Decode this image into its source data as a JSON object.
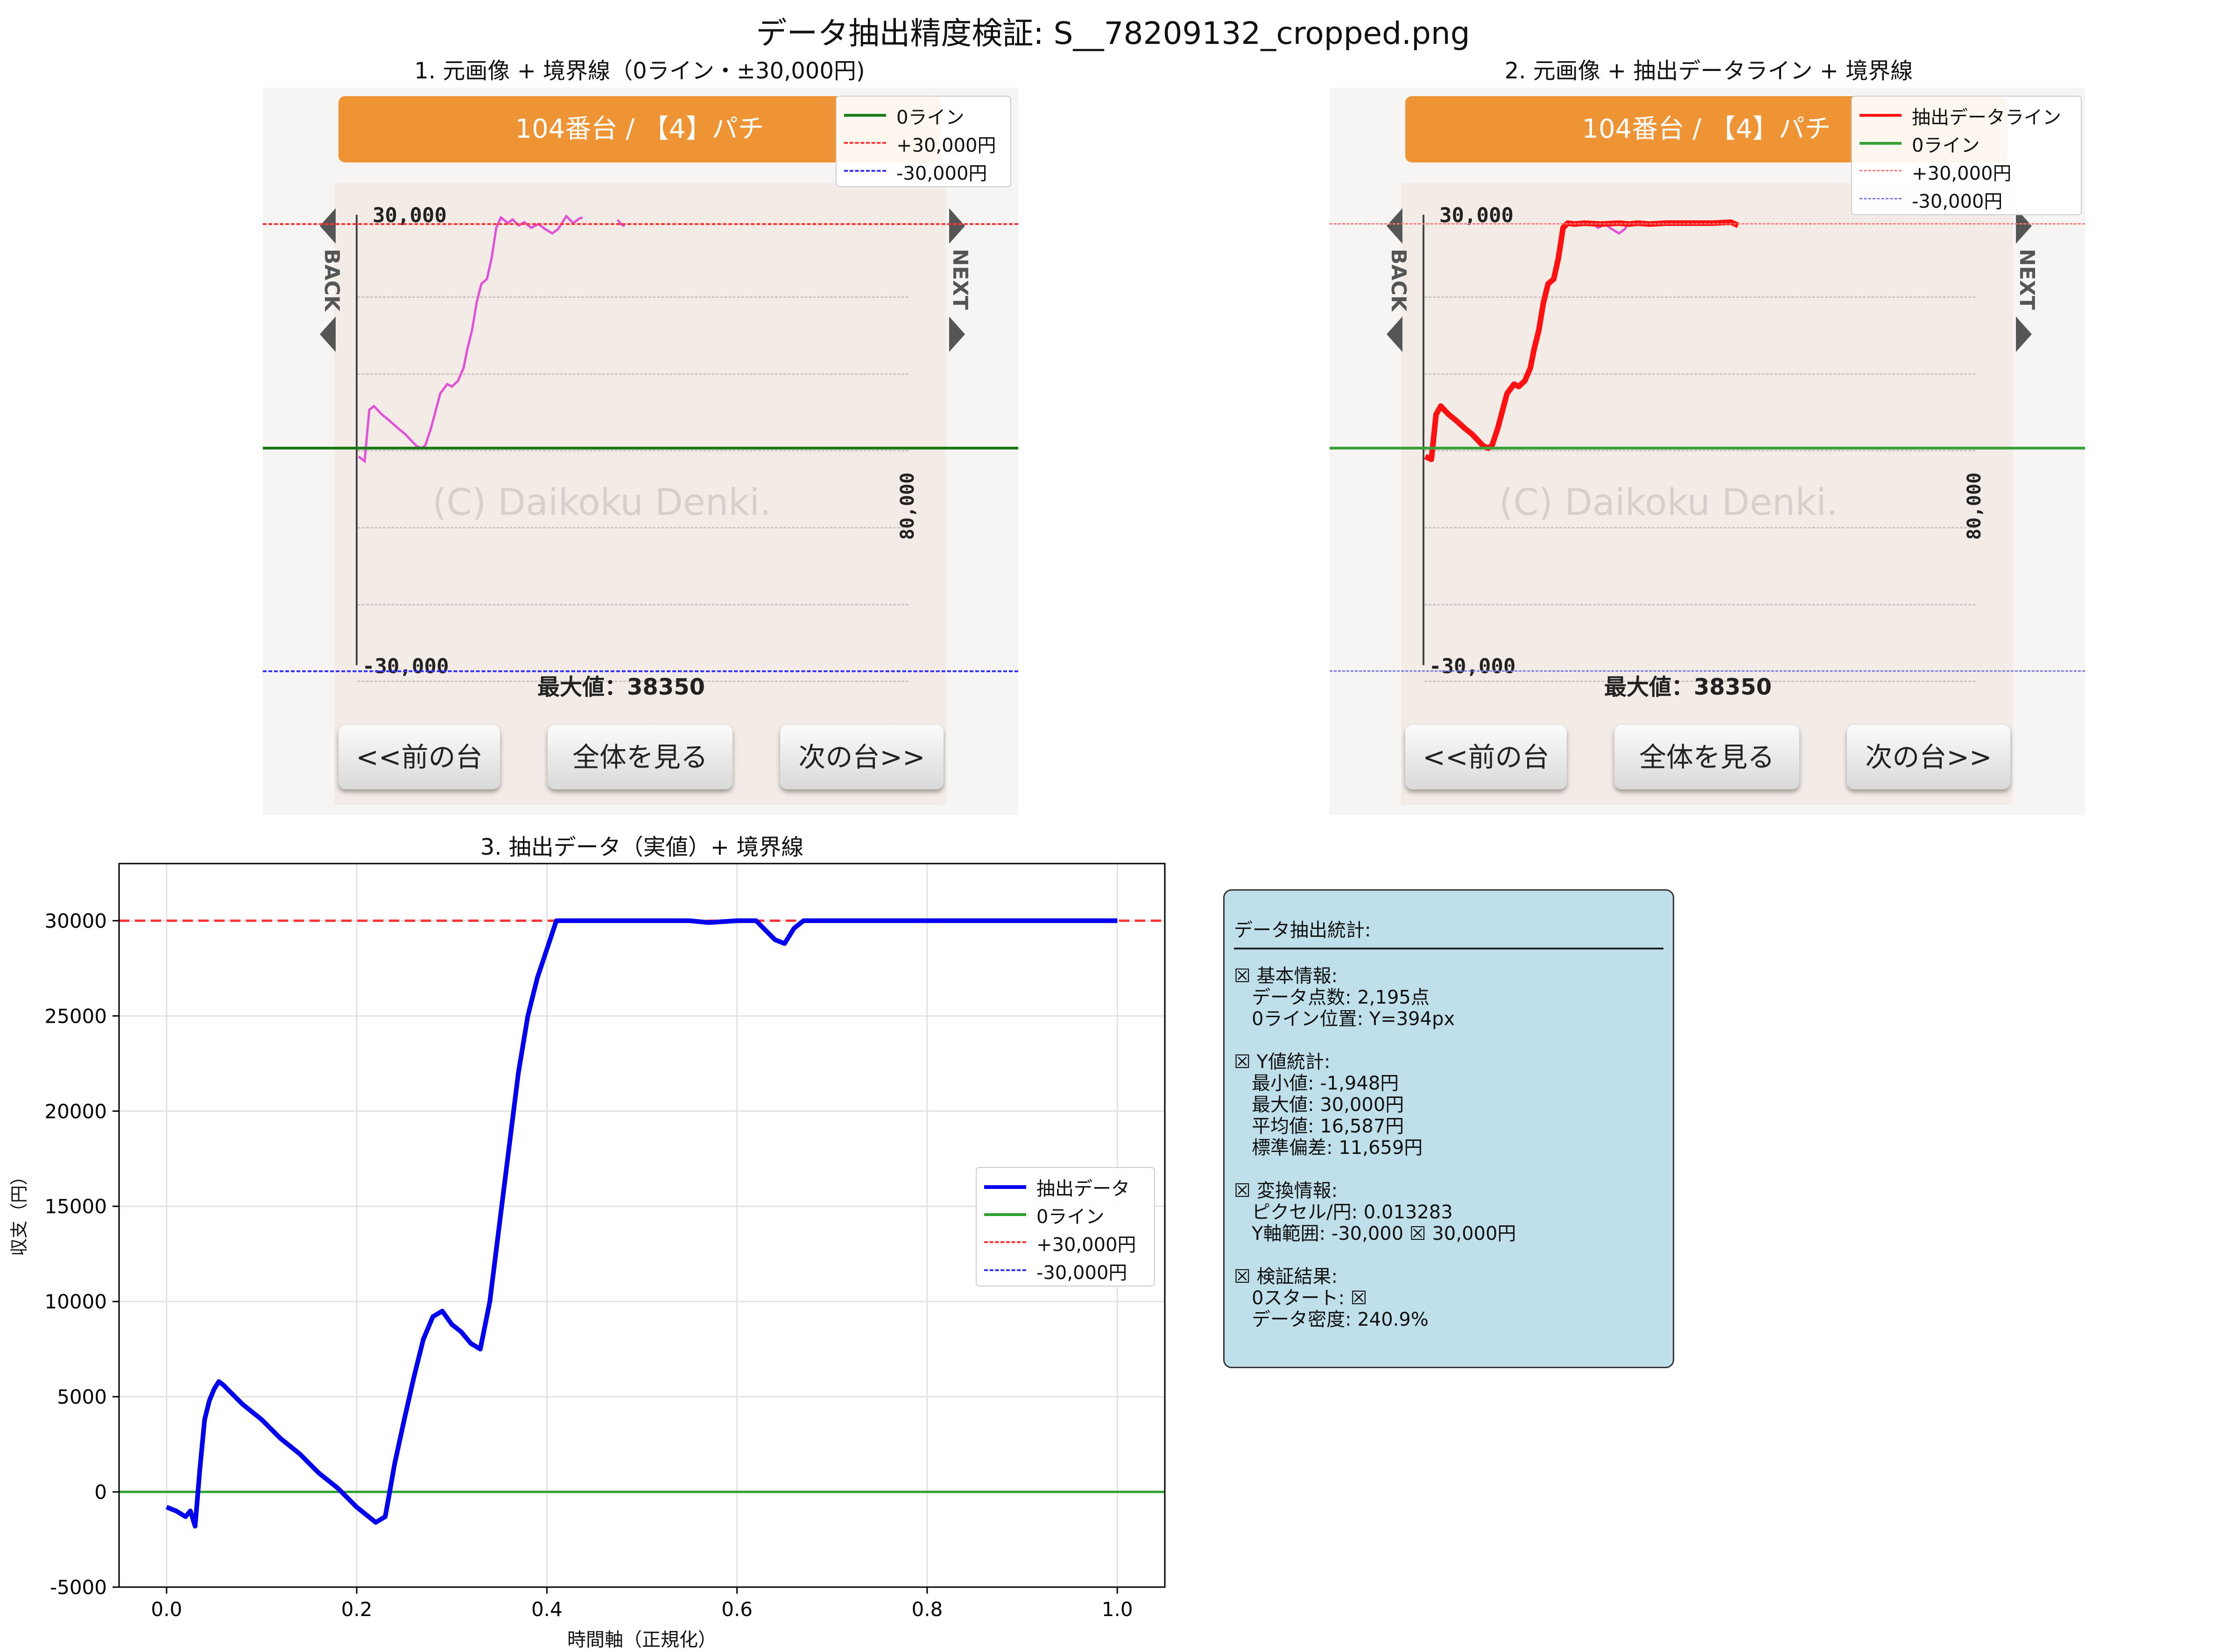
{
  "title": "データ抽出精度検証: S__78209132_cropped.png",
  "panel1": {
    "title": "1. 元画像 + 境界線（0ライン・±30,000円)",
    "legend": [
      "0ライン",
      "+30,000円",
      "-30,000円"
    ]
  },
  "panel2": {
    "title": "2. 元画像 + 抽出データライン + 境界線",
    "legend": [
      "抽出データライン",
      "0ライン",
      "+30,000円",
      "-30,000円"
    ]
  },
  "source_image": {
    "header": "104番台 / 【4】パチ",
    "y_top_label": "30,000",
    "y_bottom_label": "-30,000",
    "right_label": "80,000",
    "watermark": "(C) Daikoku Denki.",
    "max_label": "最大値：38350",
    "back_label": "BACK",
    "next_label": "NEXT",
    "buttons": [
      "<<前の台",
      "全体を見る",
      "次の台>>"
    ]
  },
  "panel3": {
    "title": "3. 抽出データ（実値）+ 境界線",
    "legend": [
      "抽出データ",
      "0ライン",
      "+30,000円",
      "-30,000円"
    ]
  },
  "chart_data": {
    "type": "line",
    "title": "3. 抽出データ（実値）+ 境界線",
    "xlabel": "時間軸（正規化）",
    "ylabel": "収支（円）",
    "xlim": [
      -0.05,
      1.05
    ],
    "ylim": [
      -5000,
      33000
    ],
    "xticks": [
      "0.0",
      "0.2",
      "0.4",
      "0.6",
      "0.8",
      "1.0"
    ],
    "yticks": [
      "-5000",
      "0",
      "5000",
      "10000",
      "15000",
      "20000",
      "25000",
      "30000"
    ],
    "grid": true,
    "legend_position": "center-right",
    "series": [
      {
        "name": "抽出データ",
        "color": "#0000ee",
        "x": [
          0.0,
          0.01,
          0.02,
          0.025,
          0.03,
          0.035,
          0.04,
          0.045,
          0.05,
          0.055,
          0.06,
          0.08,
          0.1,
          0.12,
          0.14,
          0.16,
          0.18,
          0.2,
          0.21,
          0.22,
          0.23,
          0.24,
          0.25,
          0.26,
          0.27,
          0.28,
          0.29,
          0.3,
          0.31,
          0.32,
          0.33,
          0.34,
          0.35,
          0.36,
          0.37,
          0.38,
          0.39,
          0.4,
          0.41,
          0.42,
          0.45,
          0.5,
          0.55,
          0.57,
          0.6,
          0.62,
          0.63,
          0.64,
          0.65,
          0.66,
          0.67,
          0.7,
          0.8,
          0.9,
          1.0
        ],
        "y": [
          -800,
          -1000,
          -1300,
          -1000,
          -1800,
          1200,
          3800,
          4800,
          5400,
          5800,
          5600,
          4600,
          3800,
          2800,
          2000,
          1000,
          200,
          -800,
          -1200,
          -1600,
          -1300,
          1500,
          3800,
          6000,
          8000,
          9200,
          9500,
          8800,
          8400,
          7800,
          7500,
          10000,
          14000,
          18000,
          22000,
          25000,
          27000,
          28500,
          30000,
          30000,
          30000,
          30000,
          30000,
          29900,
          30000,
          30000,
          29500,
          29000,
          28800,
          29600,
          30000,
          30000,
          30000,
          30000,
          30000
        ]
      },
      {
        "name": "0ライン",
        "color": "#2ca02c",
        "style": "solid",
        "y_const": 0
      },
      {
        "name": "+30,000円",
        "color": "#ff3333",
        "style": "dashed",
        "y_const": 30000
      },
      {
        "name": "-30,000円",
        "color": "#3333ff",
        "style": "dashed",
        "y_const": -30000
      }
    ]
  },
  "stats": {
    "header": "データ抽出統計:",
    "lines": [
      "☒ 基本情報:",
      "   データ点数: 2,195点",
      "   0ライン位置: Y=394px",
      "",
      "☒ Y値統計:",
      "   最小値: -1,948円",
      "   最大値: 30,000円",
      "   平均値: 16,587円",
      "   標準偏差: 11,659円",
      "",
      "☒ 変換情報:",
      "   ピクセル/円: 0.013283",
      "   Y軸範囲: -30,000 ☒ 30,000円",
      "",
      "☒ 検証結果:",
      "   0スタート: ☒",
      "   データ密度: 240.9%"
    ]
  },
  "colors": {
    "orange_header": "#ee9435",
    "magenta_line": "#e252d8",
    "red_line": "#ff1111",
    "blue_series": "#0000ee",
    "green_zero": "#2ca02c",
    "stats_bg": "#bfe0ea"
  }
}
